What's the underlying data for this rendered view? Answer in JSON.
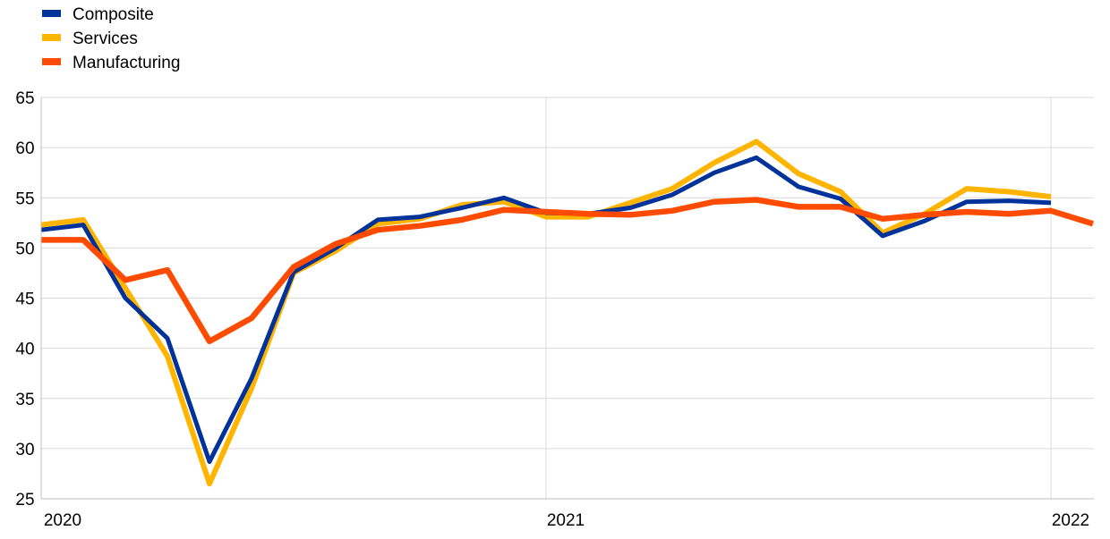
{
  "chart_data": {
    "type": "line",
    "title": "",
    "xlabel": "",
    "ylabel": "",
    "ylim": [
      25,
      65
    ],
    "yticks": [
      25,
      30,
      35,
      40,
      45,
      50,
      55,
      60,
      65
    ],
    "xlim": [
      "2020-01",
      "2022-02"
    ],
    "xticks": [
      {
        "label": "2020",
        "date": "2020-01"
      },
      {
        "label": "2021",
        "date": "2021-01"
      },
      {
        "label": "2022",
        "date": "2022-01"
      }
    ],
    "grid": true,
    "legend": "top-left",
    "series": [
      {
        "name": "Composite",
        "color": "#003299",
        "points": [
          [
            "2020-01",
            51.8
          ],
          [
            "2020-02",
            52.3
          ],
          [
            "2020-03",
            45.0
          ],
          [
            "2020-04",
            41.0
          ],
          [
            "2020-05",
            28.7
          ],
          [
            "2020-06",
            37.0
          ],
          [
            "2020-07",
            47.6
          ],
          [
            "2020-08",
            50.0
          ],
          [
            "2020-09",
            52.8
          ],
          [
            "2020-10",
            53.1
          ],
          [
            "2020-11",
            54.0
          ],
          [
            "2020-12",
            55.0
          ],
          [
            "2021-01",
            53.5
          ],
          [
            "2021-02",
            53.4
          ],
          [
            "2021-03",
            54.0
          ],
          [
            "2021-04",
            55.3
          ],
          [
            "2021-05",
            57.5
          ],
          [
            "2021-06",
            59.0
          ],
          [
            "2021-07",
            56.1
          ],
          [
            "2021-08",
            54.9
          ],
          [
            "2021-09",
            51.2
          ],
          [
            "2021-10",
            52.7
          ],
          [
            "2021-11",
            54.6
          ],
          [
            "2021-12",
            54.7
          ],
          [
            "2022-01",
            54.5
          ]
        ]
      },
      {
        "name": "Services",
        "color": "#FFB400",
        "points": [
          [
            "2020-01",
            52.3
          ],
          [
            "2020-02",
            52.8
          ],
          [
            "2020-03",
            46.0
          ],
          [
            "2020-04",
            39.2
          ],
          [
            "2020-05",
            26.5
          ],
          [
            "2020-06",
            36.0
          ],
          [
            "2020-07",
            47.5
          ],
          [
            "2020-08",
            49.7
          ],
          [
            "2020-09",
            52.4
          ],
          [
            "2020-10",
            52.9
          ],
          [
            "2020-11",
            54.3
          ],
          [
            "2020-12",
            54.6
          ],
          [
            "2021-01",
            53.1
          ],
          [
            "2021-02",
            53.1
          ],
          [
            "2021-03",
            54.5
          ],
          [
            "2021-04",
            55.9
          ],
          [
            "2021-05",
            58.5
          ],
          [
            "2021-06",
            60.6
          ],
          [
            "2021-07",
            57.4
          ],
          [
            "2021-08",
            55.6
          ],
          [
            "2021-09",
            51.5
          ],
          [
            "2021-10",
            53.4
          ],
          [
            "2021-11",
            55.9
          ],
          [
            "2021-12",
            55.6
          ],
          [
            "2022-01",
            55.1
          ]
        ]
      },
      {
        "name": "Manufacturing",
        "color": "#FF4B00",
        "points": [
          [
            "2020-01",
            50.8
          ],
          [
            "2020-02",
            50.8
          ],
          [
            "2020-03",
            46.8
          ],
          [
            "2020-04",
            47.8
          ],
          [
            "2020-05",
            40.7
          ],
          [
            "2020-06",
            43.0
          ],
          [
            "2020-07",
            48.1
          ],
          [
            "2020-08",
            50.4
          ],
          [
            "2020-09",
            51.8
          ],
          [
            "2020-10",
            52.2
          ],
          [
            "2020-11",
            52.8
          ],
          [
            "2020-12",
            53.8
          ],
          [
            "2021-01",
            53.6
          ],
          [
            "2021-02",
            53.4
          ],
          [
            "2021-03",
            53.3
          ],
          [
            "2021-04",
            53.7
          ],
          [
            "2021-05",
            54.6
          ],
          [
            "2021-06",
            54.8
          ],
          [
            "2021-07",
            54.1
          ],
          [
            "2021-08",
            54.1
          ],
          [
            "2021-09",
            52.9
          ],
          [
            "2021-10",
            53.3
          ],
          [
            "2021-11",
            53.6
          ],
          [
            "2021-12",
            53.4
          ],
          [
            "2022-01",
            53.7
          ],
          [
            "2022-02",
            52.4
          ]
        ]
      }
    ]
  }
}
